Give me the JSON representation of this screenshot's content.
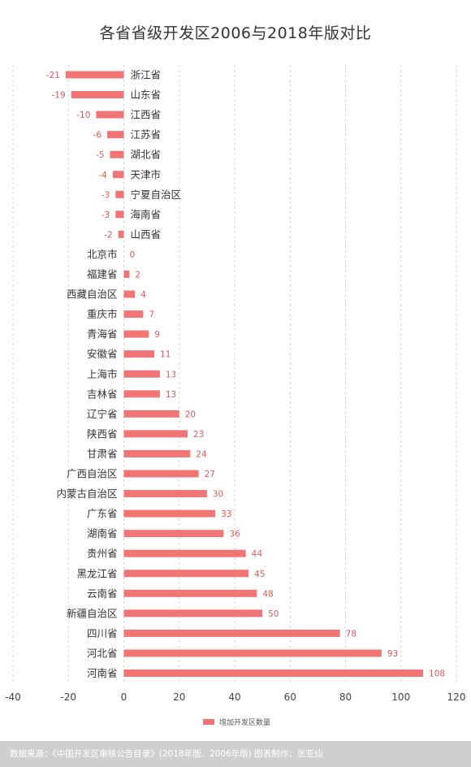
{
  "chart_data": {
    "type": "bar",
    "orientation": "horizontal",
    "title": "各省省级开发区2006与2018年版对比",
    "xlabel": "",
    "ylabel": "",
    "xlim": [
      -40,
      120
    ],
    "x_ticks": [
      -40,
      -20,
      0,
      20,
      40,
      60,
      80,
      100,
      120
    ],
    "grid": "vertical-dashed",
    "legend_position": "bottom",
    "categories": [
      "浙江省",
      "山东省",
      "江西省",
      "江苏省",
      "湖北省",
      "天津市",
      "宁夏自治区",
      "海南省",
      "山西省",
      "北京市",
      "福建省",
      "西藏自治区",
      "重庆市",
      "青海省",
      "安徽省",
      "上海市",
      "吉林省",
      "辽宁省",
      "陕西省",
      "甘肃省",
      "广西自治区",
      "内蒙古自治区",
      "广东省",
      "湖南省",
      "贵州省",
      "黑龙江省",
      "云南省",
      "新疆自治区",
      "四川省",
      "河北省",
      "河南省"
    ],
    "series": [
      {
        "name": "增加开发区数量",
        "color": "#f27575",
        "values": [
          -21,
          -19,
          -10,
          -6,
          -5,
          -4,
          -3,
          -3,
          -2,
          0,
          2,
          4,
          7,
          9,
          11,
          13,
          13,
          20,
          23,
          24,
          27,
          30,
          33,
          36,
          44,
          45,
          48,
          50,
          78,
          93,
          108
        ]
      }
    ]
  },
  "colors": {
    "bar": "#f27575",
    "value_label": "#e05a5a",
    "grid": "#cccccc",
    "text": "#333333",
    "footer_bg": "#cfcfcf"
  },
  "footer": {
    "text": "数据来源：《中国开发区审核公告目录》(2018年版、2006年版) 图表制作：张亚仙"
  }
}
